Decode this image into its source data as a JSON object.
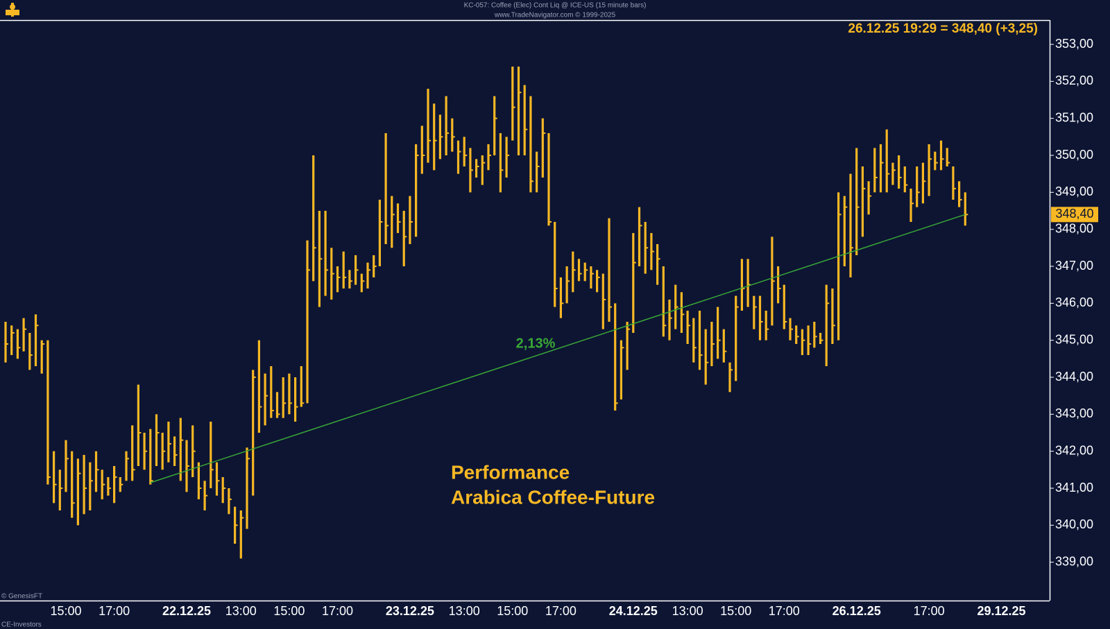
{
  "chart_data": {
    "type": "ohlc",
    "title": "KC-057: Coffee (Elec) Cont Liq @ ICE-US  (15 minute bars)",
    "subtitle": "www.TradeNavigator.com © 1999-2025",
    "quote": "26.12.25 19:29 = 348,40 (+3,25)",
    "last_price": {
      "value": 348.4,
      "label": "348,40"
    },
    "annotation": [
      "Performance",
      "Arabica Coffee-Future"
    ],
    "footer": [
      "© GenesisFT",
      "CE-Investors"
    ],
    "color": "#f7b824",
    "categories": [
      null,
      null,
      null,
      null,
      null,
      null,
      null,
      null,
      null,
      null,
      "15:00",
      null,
      null,
      null,
      null,
      null,
      null,
      null,
      "17:00",
      null,
      null,
      null,
      null,
      null,
      null,
      null,
      null,
      null,
      null,
      null,
      "22.12.25",
      null,
      null,
      null,
      null,
      null,
      null,
      null,
      null,
      "13:00",
      null,
      null,
      null,
      null,
      null,
      null,
      null,
      "15:00",
      null,
      null,
      null,
      null,
      null,
      null,
      null,
      "17:00",
      null,
      null,
      null,
      null,
      null,
      null,
      null,
      null,
      null,
      null,
      null,
      "23.12.25",
      null,
      null,
      null,
      null,
      null,
      null,
      null,
      null,
      "13:00",
      null,
      null,
      null,
      null,
      null,
      null,
      null,
      "15:00",
      null,
      null,
      null,
      null,
      null,
      null,
      null,
      "17:00",
      null,
      null,
      null,
      null,
      null,
      null,
      null,
      null,
      null,
      null,
      null,
      "24.12.25",
      null,
      null,
      null,
      null,
      null,
      null,
      null,
      null,
      "13:00",
      null,
      null,
      null,
      null,
      null,
      null,
      null,
      "15:00",
      null,
      null,
      null,
      null,
      null,
      null,
      null,
      "17:00",
      null,
      null,
      null,
      null,
      null,
      null,
      null,
      null,
      null,
      null,
      null,
      "26.12.25",
      null,
      null,
      null,
      null,
      null,
      null,
      null,
      null,
      null,
      null,
      null,
      "17:00",
      null,
      null,
      null,
      null,
      null,
      null,
      null,
      null,
      null,
      null,
      null,
      "29.12.25"
    ],
    "bold_labels": [
      "22.12.25",
      "23.12.25",
      "24.12.25",
      "26.12.25",
      "29.12.25"
    ],
    "high": [
      345.5,
      345.4,
      345.3,
      345.6,
      345.2,
      345.7,
      345.0,
      345.0,
      342.0,
      341.5,
      342.3,
      342.0,
      341.8,
      341.9,
      341.7,
      342.0,
      341.5,
      341.3,
      341.6,
      341.3,
      342.0,
      342.7,
      343.8,
      342.5,
      342.6,
      343.0,
      342.5,
      342.8,
      342.4,
      342.9,
      342.3,
      342.7,
      341.7,
      341.2,
      342.8,
      341.7,
      341.3,
      341.0,
      340.5,
      340.4,
      342.1,
      344.2,
      345.0,
      344.1,
      344.3,
      343.6,
      344.0,
      344.1,
      344.0,
      344.3,
      347.7,
      350.0,
      348.5,
      348.5,
      347.5,
      347.0,
      347.4,
      346.9,
      347.3,
      346.8,
      347.1,
      347.3,
      348.8,
      350.6,
      348.9,
      348.7,
      348.5,
      348.9,
      350.3,
      350.8,
      351.8,
      351.4,
      351.1,
      351.6,
      351.0,
      350.4,
      350.5,
      350.2,
      349.9,
      350.0,
      350.3,
      351.6,
      350.6,
      350.5,
      352.4,
      352.4,
      351.9,
      351.6,
      350.1,
      351.0,
      350.6,
      348.2,
      346.7,
      347.0,
      347.4,
      347.2,
      347.1,
      347.0,
      346.9,
      346.8,
      348.3,
      346.0,
      345.0,
      345.5,
      347.9,
      348.6,
      348.2,
      347.9,
      347.6,
      347.0,
      346.1,
      346.5,
      346.3,
      345.8,
      345.6,
      345.8,
      345.3,
      345.5,
      345.9,
      345.3,
      344.4,
      346.2,
      347.2,
      347.2,
      346.2,
      346.2,
      345.8,
      347.8,
      347.0,
      346.5,
      345.6,
      345.4,
      345.3,
      345.4,
      345.5,
      345.2,
      346.5,
      346.4,
      349.0,
      348.9,
      349.5,
      350.2,
      349.7,
      349.3,
      350.2,
      350.3,
      350.7,
      349.8,
      350.0,
      349.7,
      349.1,
      349.7,
      349.8,
      350.3,
      350.1,
      350.4,
      350.2,
      349.7,
      349.3,
      349.0,
      null,
      null,
      null,
      null,
      null,
      null
    ],
    "low": [
      344.4,
      344.6,
      344.5,
      344.7,
      344.2,
      344.3,
      344.1,
      341.1,
      340.6,
      340.4,
      340.9,
      340.2,
      340.0,
      340.3,
      340.4,
      340.9,
      340.7,
      340.8,
      340.6,
      340.9,
      341.2,
      341.2,
      341.6,
      341.5,
      341.1,
      341.6,
      341.5,
      341.7,
      341.6,
      341.2,
      340.9,
      341.3,
      340.7,
      340.4,
      341.0,
      340.8,
      340.6,
      340.3,
      339.5,
      339.1,
      339.9,
      340.8,
      342.5,
      342.7,
      342.9,
      342.9,
      342.9,
      343.0,
      342.8,
      343.2,
      343.3,
      346.6,
      345.9,
      346.2,
      346.1,
      346.3,
      346.4,
      346.4,
      346.5,
      346.3,
      346.4,
      346.7,
      347.0,
      347.6,
      347.5,
      347.9,
      347.0,
      347.6,
      347.8,
      349.5,
      349.8,
      349.6,
      349.9,
      350.0,
      350.1,
      349.5,
      349.7,
      349.0,
      349.4,
      349.2,
      349.6,
      350.0,
      349.0,
      349.4,
      350.4,
      350.0,
      350.0,
      349.0,
      349.0,
      349.4,
      348.1,
      345.9,
      345.6,
      346.0,
      346.3,
      346.6,
      346.6,
      346.4,
      346.3,
      345.3,
      345.5,
      343.1,
      343.4,
      344.2,
      345.2,
      347.0,
      346.8,
      346.9,
      346.5,
      345.1,
      345.0,
      345.3,
      345.2,
      344.9,
      344.4,
      344.2,
      343.8,
      344.3,
      344.5,
      344.4,
      343.6,
      343.9,
      345.8,
      345.9,
      345.3,
      345.0,
      345.0,
      345.4,
      346.0,
      345.3,
      345.0,
      344.9,
      344.6,
      344.6,
      344.8,
      344.9,
      344.3,
      344.9,
      345.0,
      347.0,
      346.7,
      347.3,
      347.8,
      348.4,
      349.0,
      349.0,
      349.0,
      349.2,
      349.1,
      349.0,
      348.2,
      348.6,
      348.7,
      348.9,
      349.6,
      349.6,
      349.7,
      348.8,
      348.6,
      348.1,
      null,
      null,
      null,
      null,
      null,
      null
    ],
    "close": [
      344.9,
      345.2,
      344.8,
      345.3,
      344.6,
      345.4,
      344.9,
      341.3,
      341.1,
      341.0,
      341.8,
      340.6,
      341.4,
      341.0,
      341.2,
      341.5,
      341.1,
      341.0,
      341.3,
      341.1,
      341.8,
      341.5,
      342.5,
      342.0,
      341.2,
      342.5,
      342.0,
      342.2,
      341.9,
      342.3,
      341.6,
      342.0,
      341.0,
      340.8,
      341.5,
      341.2,
      341.0,
      340.7,
      340.0,
      340.2,
      341.8,
      344.0,
      343.2,
      343.5,
      343.1,
      343.0,
      343.3,
      343.3,
      343.2,
      343.3,
      346.9,
      347.5,
      347.2,
      346.9,
      346.8,
      346.7,
      346.7,
      346.6,
      346.9,
      346.6,
      346.9,
      347.0,
      348.2,
      348.1,
      348.4,
      348.2,
      347.8,
      348.2,
      350.0,
      350.0,
      350.4,
      350.4,
      350.5,
      350.6,
      350.5,
      350.1,
      350.0,
      349.6,
      349.7,
      349.8,
      350.0,
      351.0,
      349.6,
      350.0,
      351.3,
      351.7,
      350.7,
      349.3,
      349.7,
      350.6,
      348.2,
      346.4,
      346.0,
      346.6,
      346.9,
      346.8,
      346.9,
      346.8,
      346.7,
      346.1,
      345.9,
      343.3,
      344.8,
      345.3,
      347.1,
      348.1,
      347.5,
      347.4,
      347.2,
      345.4,
      345.6,
      345.9,
      345.7,
      345.4,
      344.8,
      344.6,
      344.4,
      344.9,
      345.0,
      344.7,
      344.2,
      345.9,
      346.4,
      346.5,
      345.9,
      345.5,
      345.3,
      346.6,
      346.4,
      345.5,
      345.3,
      345.1,
      345.0,
      344.9,
      345.1,
      345.0,
      346.0,
      345.4,
      348.4,
      348.6,
      347.5,
      348.6,
      349.1,
      348.9,
      349.4,
      349.8,
      349.5,
      349.6,
      349.4,
      349.2,
      348.7,
      349.0,
      349.3,
      349.9,
      349.8,
      349.9,
      349.8,
      349.1,
      348.8,
      348.4,
      null,
      null,
      null,
      null,
      null,
      null
    ],
    "trendline": {
      "label": "2,13%",
      "color": "#3aa835",
      "from": {
        "index": 24,
        "value": 341.15
      },
      "to": {
        "index": 159,
        "value": 348.4
      }
    },
    "ylim": [
      338.6,
      353.3
    ],
    "yticks": [
      {
        "value": 339,
        "label": "339,00"
      },
      {
        "value": 340,
        "label": "340,00"
      },
      {
        "value": 341,
        "label": "341,00"
      },
      {
        "value": 342,
        "label": "342,00"
      },
      {
        "value": 343,
        "label": "343,00"
      },
      {
        "value": 344,
        "label": "344,00"
      },
      {
        "value": 345,
        "label": "345,00"
      },
      {
        "value": 346,
        "label": "346,00"
      },
      {
        "value": 347,
        "label": "347,00"
      },
      {
        "value": 348,
        "label": "348,00"
      },
      {
        "value": 349,
        "label": "349,00"
      },
      {
        "value": 350,
        "label": "350,00"
      },
      {
        "value": 351,
        "label": "351,00"
      },
      {
        "value": 352,
        "label": "352,00"
      },
      {
        "value": 353,
        "label": "353,00"
      }
    ]
  }
}
